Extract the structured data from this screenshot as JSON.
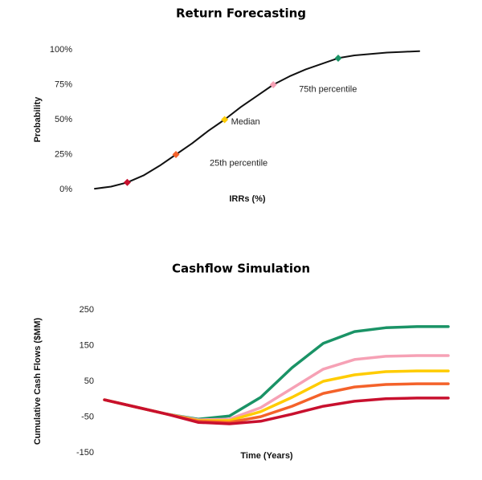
{
  "chart_data": [
    {
      "type": "line",
      "title": "Return Forecasting",
      "y_label": "Probability",
      "x_label": "IRRs (%)",
      "categories": [
        null,
        null,
        null,
        null,
        null,
        null,
        null,
        null,
        null,
        null,
        null,
        null,
        null,
        null,
        null,
        null,
        null,
        null,
        null,
        null,
        null
      ],
      "series": [
        {
          "color": "#111111",
          "values": [
            0.5,
            2,
            5,
            10,
            17,
            25,
            33,
            42,
            50,
            59,
            67,
            75,
            81,
            86,
            90,
            94,
            96,
            97,
            98,
            98.5,
            99
          ]
        },
        {
          "color": "#c8102e",
          "marker": "diamond",
          "values": [
            null,
            null,
            5,
            null,
            null,
            null,
            null,
            null,
            null,
            null,
            null,
            null,
            null,
            null,
            null,
            null,
            null,
            null,
            null,
            null,
            null
          ]
        },
        {
          "color": "#f4622a",
          "marker": "diamond",
          "label": "25th percentile",
          "values": [
            null,
            null,
            null,
            null,
            null,
            25,
            null,
            null,
            null,
            null,
            null,
            null,
            null,
            null,
            null,
            null,
            null,
            null,
            null,
            null,
            null
          ]
        },
        {
          "color": "#ffcc00",
          "marker": "diamond",
          "label": "Median",
          "values": [
            null,
            null,
            null,
            null,
            null,
            null,
            null,
            null,
            50,
            null,
            null,
            null,
            null,
            null,
            null,
            null,
            null,
            null,
            null,
            null,
            null
          ]
        },
        {
          "color": "#f6a1b5",
          "marker": "diamond",
          "label": "75th percentile",
          "values": [
            null,
            null,
            null,
            null,
            null,
            null,
            null,
            null,
            null,
            null,
            null,
            75,
            null,
            null,
            null,
            null,
            null,
            null,
            null,
            null,
            null
          ]
        },
        {
          "color": "#1a9366",
          "marker": "diamond",
          "values": [
            null,
            null,
            null,
            null,
            null,
            null,
            null,
            null,
            null,
            null,
            null,
            null,
            null,
            null,
            null,
            94,
            null,
            null,
            null,
            null,
            null
          ]
        }
      ],
      "ylim": [
        0,
        100
      ],
      "yticks": [
        {
          "value": 0,
          "label": "0%"
        },
        {
          "value": 25,
          "label": "25%"
        },
        {
          "value": 50,
          "label": "50%"
        },
        {
          "value": 75,
          "label": "75%"
        },
        {
          "value": 100,
          "label": "100%"
        }
      ]
    },
    {
      "type": "line",
      "title": "Cashflow Simulation",
      "y_label": "Cumulative Cash Flows ($MM)",
      "x_label": "Time (Years)",
      "categories": [
        null,
        null,
        null,
        null,
        null,
        null,
        null,
        null,
        null,
        null,
        null,
        null
      ],
      "series": [
        {
          "color": "#1a9366",
          "values": [
            -2,
            -22,
            -42,
            -56,
            -47,
            5,
            88,
            156,
            189,
            200,
            203,
            203
          ]
        },
        {
          "color": "#f6a1b5",
          "values": [
            -2,
            -22,
            -42,
            -58,
            -56,
            -24,
            30,
            84,
            111,
            120,
            122,
            122
          ]
        },
        {
          "color": "#ffcc00",
          "values": [
            -2,
            -22,
            -42,
            -60,
            -60,
            -35,
            5,
            50,
            68,
            77,
            79,
            79
          ]
        },
        {
          "color": "#f4622a",
          "values": [
            -2,
            -22,
            -42,
            -62,
            -65,
            -49,
            -20,
            16,
            34,
            41,
            43,
            43
          ]
        },
        {
          "color": "#c8102e",
          "values": [
            -2,
            -22,
            -42,
            -65,
            -69,
            -62,
            -42,
            -20,
            -6,
            1,
            3,
            3
          ]
        }
      ],
      "ylim": [
        -150,
        250
      ],
      "yticks": [
        250,
        150,
        50,
        -50,
        -150
      ]
    }
  ]
}
